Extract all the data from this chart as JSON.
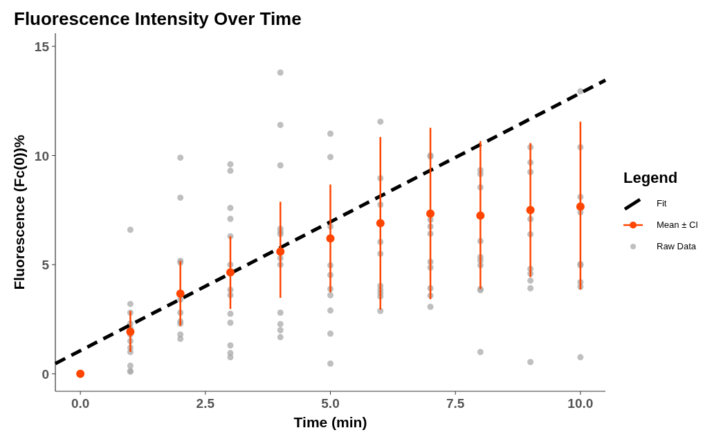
{
  "chart_data": {
    "type": "scatter",
    "title": "Fluorescence Intensity Over Time",
    "xlabel": "Time (min)",
    "ylabel": "Fluorescence (Fc(0))%",
    "legend_title": "Legend",
    "xlim": [
      -0.5,
      10.5
    ],
    "ylim": [
      -0.8,
      15.6
    ],
    "xticks": [
      {
        "value": 0,
        "label": "0.0"
      },
      {
        "value": 2.5,
        "label": "2.5"
      },
      {
        "value": 5,
        "label": "5.0"
      },
      {
        "value": 7.5,
        "label": "7.5"
      },
      {
        "value": 10,
        "label": "10.0"
      }
    ],
    "yticks": [
      0,
      5,
      10,
      15
    ],
    "grid": false,
    "legend": "right",
    "series": [
      {
        "name": "Fit",
        "type": "line",
        "color": "#000000",
        "line_style": "dashed",
        "marker": "none",
        "x": [
          -0.5,
          10.5
        ],
        "values": [
          0.47,
          13.45
        ]
      },
      {
        "name": "Mean ± CI",
        "color": "#ff4500",
        "marker": "circle",
        "x": [
          0,
          1,
          2,
          3,
          4,
          5,
          6,
          7,
          8,
          9,
          10
        ],
        "values": [
          0,
          1.93,
          3.67,
          4.65,
          5.6,
          6.2,
          6.9,
          7.34,
          7.25,
          7.5,
          7.66
        ],
        "errors": [
          null,
          [
            1.0,
            2.88
          ],
          [
            2.2,
            5.17
          ],
          [
            2.97,
            6.3
          ],
          [
            3.48,
            7.88
          ],
          [
            3.73,
            8.67
          ],
          [
            2.94,
            10.85
          ],
          [
            3.42,
            11.27
          ],
          [
            3.89,
            10.66
          ],
          [
            4.43,
            10.57
          ],
          [
            3.86,
            11.55
          ]
        ]
      },
      {
        "name": "Raw Data",
        "color": "#a9a9a9",
        "marker": "circle",
        "x": [
          1,
          1,
          1,
          1,
          1,
          1,
          1,
          1,
          1,
          1,
          1,
          1,
          2,
          2,
          2,
          2,
          2,
          2,
          2,
          2,
          2,
          2,
          3,
          3,
          3,
          3,
          3,
          3,
          3,
          3,
          3,
          3,
          3,
          3,
          3,
          4,
          4,
          4,
          4,
          4,
          4,
          4,
          4,
          4,
          4,
          4,
          4,
          5,
          5,
          5,
          5,
          5,
          5,
          5,
          5,
          5,
          5,
          6,
          6,
          6,
          6,
          6,
          6,
          6,
          6,
          6,
          6,
          7,
          7,
          7,
          7,
          7,
          7,
          7,
          7,
          7,
          7,
          8,
          8,
          8,
          8,
          8,
          8,
          8,
          8,
          8,
          8,
          9,
          9,
          9,
          9,
          9,
          9,
          9,
          9,
          9,
          9,
          10,
          10,
          10,
          10,
          10,
          10,
          10,
          10,
          10
        ],
        "values": [
          6.6,
          3.2,
          2.8,
          2.3,
          2.1,
          1.8,
          1.5,
          1.2,
          1.0,
          0.37,
          0.13,
          0.1,
          9.9,
          8.07,
          5.17,
          5.1,
          3.4,
          2.8,
          2.4,
          2.3,
          1.8,
          1.6,
          9.6,
          9.3,
          7.6,
          7.1,
          6.3,
          5.0,
          3.85,
          3.6,
          2.75,
          2.34,
          1.3,
          0.95,
          0.76,
          13.8,
          11.4,
          9.55,
          6.65,
          6.5,
          6.4,
          5.3,
          5.0,
          2.8,
          2.28,
          2.0,
          1.68,
          11.0,
          9.93,
          6.75,
          4.97,
          4.53,
          3.89,
          3.6,
          2.9,
          1.84,
          0.47,
          11.55,
          8.96,
          7.75,
          6.04,
          5.5,
          4.03,
          3.85,
          3.7,
          3.54,
          2.88,
          10.0,
          9.95,
          7.06,
          6.75,
          6.42,
          5.13,
          4.87,
          3.92,
          3.58,
          3.07,
          9.33,
          9.15,
          8.54,
          6.08,
          5.35,
          5.19,
          4.97,
          3.89,
          3.83,
          1.0,
          10.38,
          9.68,
          9.24,
          7.09,
          6.39,
          4.81,
          4.59,
          4.27,
          3.92,
          0.54,
          12.94,
          10.38,
          8.1,
          7.4,
          5.03,
          4.97,
          4.2,
          3.99,
          0.76
        ]
      }
    ]
  }
}
